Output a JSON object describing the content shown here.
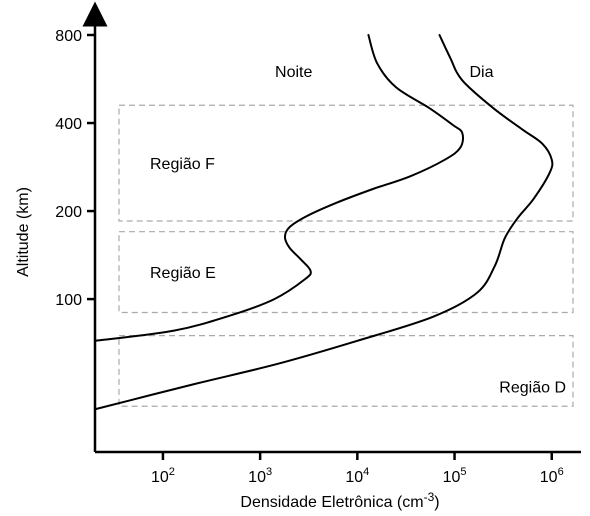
{
  "chart_data": {
    "type": "line",
    "xlabel_base": "Densidade Eletrônica (cm",
    "xlabel_exp": "-3",
    "xlabel_tail": ")",
    "ylabel": "Altitude (km)",
    "x_scale": "log",
    "y_scale": "log",
    "xlim": [
      20,
      2000000
    ],
    "ylim": [
      30,
      800
    ],
    "grid": false,
    "x_ticks": [
      {
        "value": 100,
        "base": "10",
        "exp": "2"
      },
      {
        "value": 1000,
        "base": "10",
        "exp": "3"
      },
      {
        "value": 10000,
        "base": "10",
        "exp": "4"
      },
      {
        "value": 100000,
        "base": "10",
        "exp": "5"
      },
      {
        "value": 1000000,
        "base": "10",
        "exp": "6"
      }
    ],
    "y_ticks": [
      {
        "value": 100,
        "label": "100"
      },
      {
        "value": 200,
        "label": "200"
      },
      {
        "value": 400,
        "label": "400"
      },
      {
        "value": 800,
        "label": "800"
      }
    ],
    "series": [
      {
        "name": "Noite",
        "points": [
          [
            20,
            72
          ],
          [
            130,
            78
          ],
          [
            500,
            88
          ],
          [
            1400,
            100
          ],
          [
            2900,
            117
          ],
          [
            3300,
            125
          ],
          [
            2600,
            137
          ],
          [
            2000,
            150
          ],
          [
            1800,
            163
          ],
          [
            2000,
            176
          ],
          [
            3000,
            192
          ],
          [
            6000,
            213
          ],
          [
            14000,
            237
          ],
          [
            35000,
            263
          ],
          [
            80000,
            300
          ],
          [
            115000,
            330
          ],
          [
            120000,
            370
          ],
          [
            95000,
            395
          ],
          [
            55000,
            450
          ],
          [
            25000,
            530
          ],
          [
            16000,
            640
          ],
          [
            13000,
            800
          ]
        ]
      },
      {
        "name": "Dia",
        "points": [
          [
            20,
            42
          ],
          [
            200,
            51
          ],
          [
            1500,
            60
          ],
          [
            10000,
            72
          ],
          [
            60000,
            87
          ],
          [
            170000,
            105
          ],
          [
            260000,
            130
          ],
          [
            330000,
            162
          ],
          [
            450000,
            190
          ],
          [
            650000,
            220
          ],
          [
            950000,
            270
          ],
          [
            1000000,
            300
          ],
          [
            800000,
            340
          ],
          [
            500000,
            380
          ],
          [
            250000,
            450
          ],
          [
            120000,
            560
          ],
          [
            90000,
            670
          ],
          [
            70000,
            800
          ]
        ]
      }
    ],
    "regions": [
      {
        "label": "Região F",
        "bottom_km": 185,
        "top_km": 460
      },
      {
        "label": "Região E",
        "bottom_km": 90,
        "top_km": 170
      },
      {
        "label": "Região D",
        "bottom_km": 43,
        "top_km": 75
      }
    ]
  }
}
